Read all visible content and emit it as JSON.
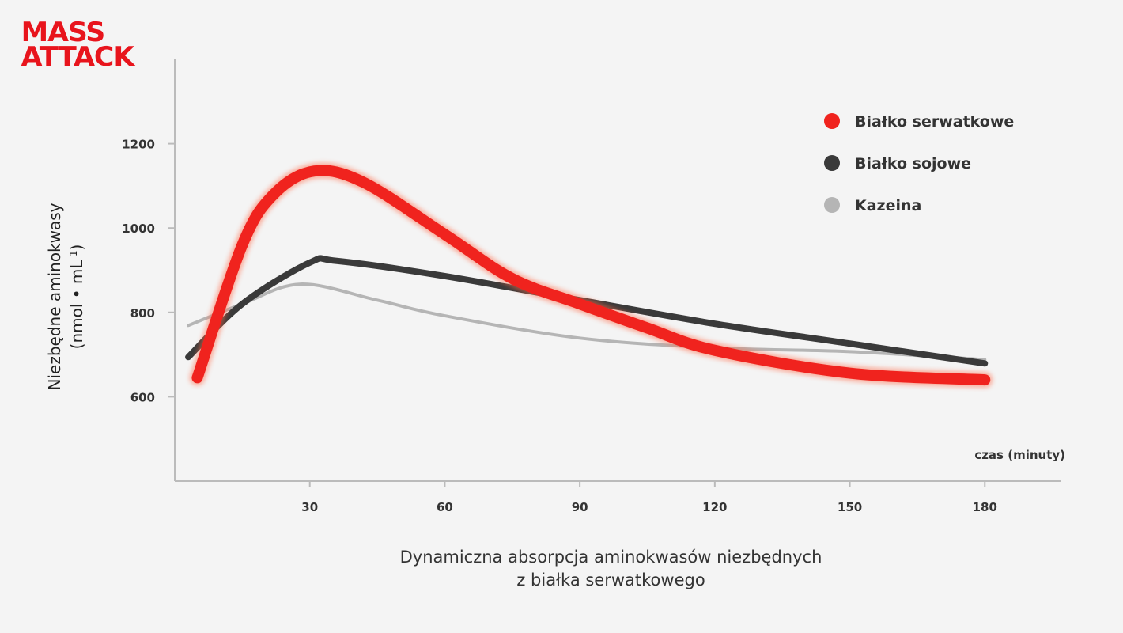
{
  "logo": {
    "line1": "MASS",
    "line2": "ATTACK"
  },
  "caption": {
    "line1": "Dynamiczna absorpcja aminokwasów niezbędnych",
    "line2": "z białka serwatkowego"
  },
  "chart_data": {
    "type": "line",
    "title": "Dynamiczna absorpcja aminokwasów niezbędnych z białka serwatkowego",
    "xlabel": "czas (minuty)",
    "ylabel_line1": "Niezbędne aminokwasy",
    "ylabel_line2": "(nmol • mL",
    "ylabel_sup": "-1",
    "ylabel_close": ")",
    "xlim": [
      0,
      197
    ],
    "ylim": [
      400,
      1400
    ],
    "xticks": [
      30,
      60,
      90,
      120,
      150,
      180
    ],
    "yticks": [
      600,
      800,
      1000,
      1200
    ],
    "legend_position": "top-right",
    "series": [
      {
        "name": "Kazeina",
        "color": "#b5b5b5",
        "x": [
          3,
          15,
          28,
          45,
          60,
          90,
          120,
          150,
          180
        ],
        "y": [
          769,
          820,
          867,
          829,
          792,
          739,
          716,
          707,
          688
        ]
      },
      {
        "name": "Białko sojowe",
        "color": "#3a3a3a",
        "x": [
          3,
          15,
          30,
          36,
          60,
          90,
          120,
          150,
          180
        ],
        "y": [
          694,
          820,
          918,
          922,
          886,
          829,
          773,
          726,
          679
        ]
      },
      {
        "name": "Białko serwatkowe",
        "color": "#f0231e",
        "x": [
          5,
          15,
          22,
          31,
          42,
          60,
          75,
          90,
          105,
          120,
          150,
          180
        ],
        "y": [
          645,
          960,
          1080,
          1135,
          1108,
          985,
          880,
          820,
          763,
          710,
          656,
          640
        ]
      }
    ],
    "legend": [
      "Białko serwatkowe",
      "Białko sojowe",
      "Kazeina"
    ]
  }
}
